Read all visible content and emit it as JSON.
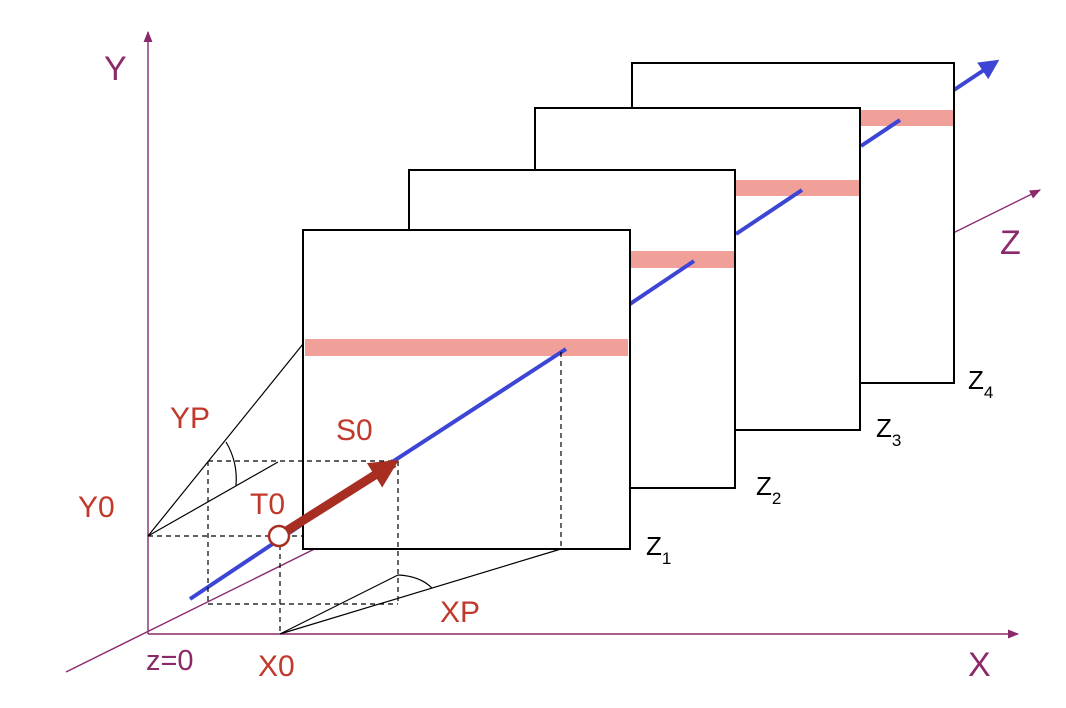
{
  "colors": {
    "axis": "#8a2a6a",
    "red_label": "#c0392b",
    "beam": "#3d46d4",
    "highlight": "#f0a098",
    "track": "#a82e22",
    "frame": "#000000"
  },
  "axes": {
    "x_label": "X",
    "y_label": "Y",
    "z_label": "Z",
    "origin_label": "z=0"
  },
  "labels": {
    "y0": "Y0",
    "x0": "X0",
    "yp": "YP",
    "xp": "XP",
    "s0": "S0",
    "t0": "T0"
  },
  "planes": [
    {
      "letter": "Z",
      "sub": "1"
    },
    {
      "letter": "Z",
      "sub": "2"
    },
    {
      "letter": "Z",
      "sub": "3"
    },
    {
      "letter": "Z",
      "sub": "4"
    }
  ]
}
